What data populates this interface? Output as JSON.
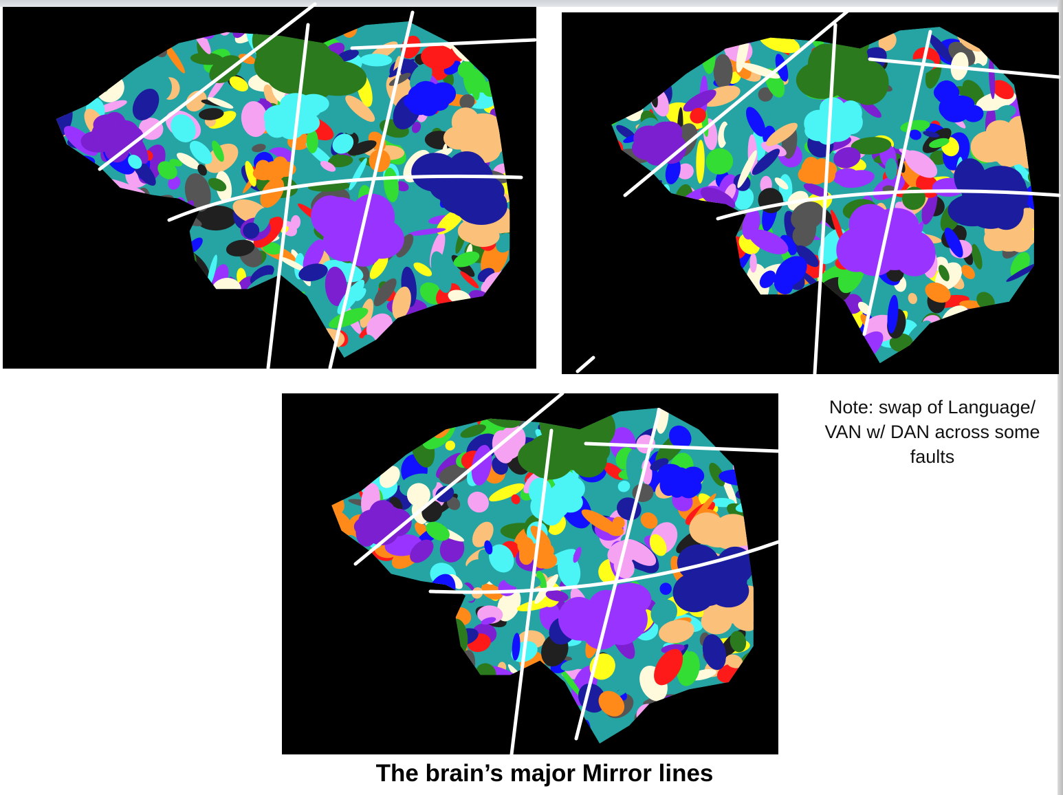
{
  "slide": {
    "note": "Note: swap of Language/\nVAN w/ DAN across some\nfaults",
    "caption": "The brain’s major Mirror lines"
  },
  "panels": [
    {
      "id": "top-left"
    },
    {
      "id": "top-right"
    },
    {
      "id": "bottom-center"
    }
  ],
  "colors": {
    "background": "#000000",
    "mirror_line": "#ffffff",
    "parcels": [
      "#2b7a1e",
      "#1c1c9e",
      "#7b1fd1",
      "#ff1a1a",
      "#ffff1a",
      "#26a3a3",
      "#33dd33",
      "#f5a2f2",
      "#4cf5f5",
      "#ff8a1a",
      "#fbc07a",
      "#fffadc",
      "#202020",
      "#555555",
      "#9933ff",
      "#1111ff"
    ]
  }
}
